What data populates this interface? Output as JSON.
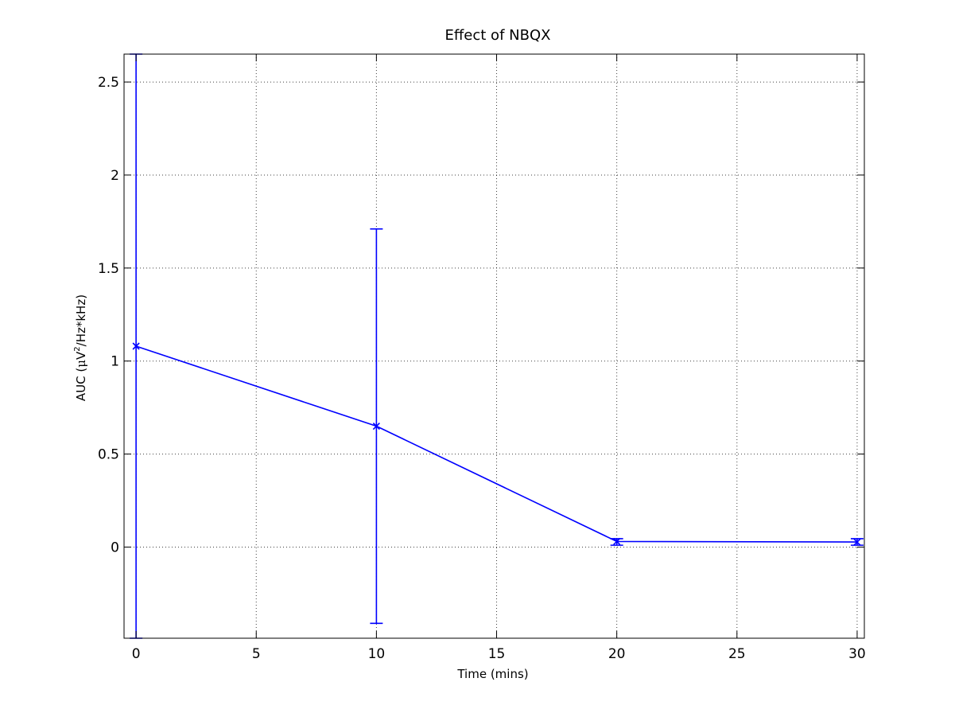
{
  "chart_data": {
    "type": "line",
    "title": "Effect of NBQX",
    "xlabel": "Time (mins)",
    "ylabel_prefix": "AUC (",
    "ylabel_mu": "μ",
    "ylabel_V": "V",
    "ylabel_sup": "2",
    "ylabel_suffix": "/Hz*kHz)",
    "xlim": [
      -0.5,
      30.3
    ],
    "ylim": [
      -0.49,
      2.65
    ],
    "xticks": [
      0,
      5,
      10,
      15,
      20,
      25,
      30
    ],
    "yticks": [
      0,
      0.5,
      1,
      1.5,
      2,
      2.5
    ],
    "grid": true,
    "series": [
      {
        "color": "#0000ff",
        "marker": "x",
        "x": [
          0,
          10,
          20,
          30
        ],
        "y": [
          1.08,
          0.65,
          0.03,
          0.027
        ],
        "error_low": [
          -0.49,
          -0.41,
          0.01,
          0.01
        ],
        "error_high": [
          2.65,
          1.71,
          0.045,
          0.045
        ]
      }
    ]
  }
}
